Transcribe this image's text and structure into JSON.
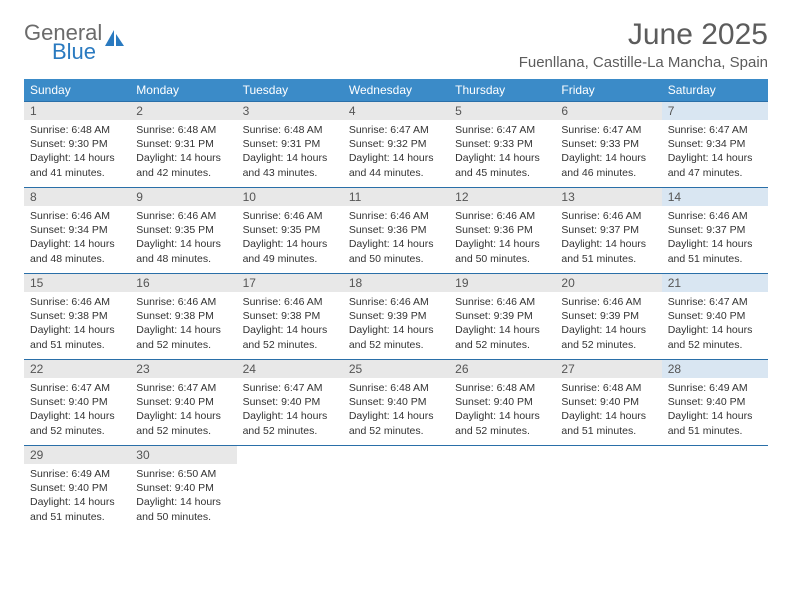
{
  "logo": {
    "text1": "General",
    "text2": "Blue"
  },
  "title": "June 2025",
  "location": "Fuenllana, Castille-La Mancha, Spain",
  "colors": {
    "header_bg": "#3b8bc8",
    "header_text": "#ffffff",
    "daynum_bg": "#e8e8e8",
    "daynum_sat_bg": "#d9e6f2",
    "border": "#2a6fa8",
    "title_color": "#5c5c5c",
    "logo_gray": "#6b6b6b",
    "logo_blue": "#2a7ac0"
  },
  "day_headers": [
    "Sunday",
    "Monday",
    "Tuesday",
    "Wednesday",
    "Thursday",
    "Friday",
    "Saturday"
  ],
  "days": [
    {
      "n": "1",
      "sunrise": "6:48 AM",
      "sunset": "9:30 PM",
      "daylight": "14 hours and 41 minutes."
    },
    {
      "n": "2",
      "sunrise": "6:48 AM",
      "sunset": "9:31 PM",
      "daylight": "14 hours and 42 minutes."
    },
    {
      "n": "3",
      "sunrise": "6:48 AM",
      "sunset": "9:31 PM",
      "daylight": "14 hours and 43 minutes."
    },
    {
      "n": "4",
      "sunrise": "6:47 AM",
      "sunset": "9:32 PM",
      "daylight": "14 hours and 44 minutes."
    },
    {
      "n": "5",
      "sunrise": "6:47 AM",
      "sunset": "9:33 PM",
      "daylight": "14 hours and 45 minutes."
    },
    {
      "n": "6",
      "sunrise": "6:47 AM",
      "sunset": "9:33 PM",
      "daylight": "14 hours and 46 minutes."
    },
    {
      "n": "7",
      "sunrise": "6:47 AM",
      "sunset": "9:34 PM",
      "daylight": "14 hours and 47 minutes."
    },
    {
      "n": "8",
      "sunrise": "6:46 AM",
      "sunset": "9:34 PM",
      "daylight": "14 hours and 48 minutes."
    },
    {
      "n": "9",
      "sunrise": "6:46 AM",
      "sunset": "9:35 PM",
      "daylight": "14 hours and 48 minutes."
    },
    {
      "n": "10",
      "sunrise": "6:46 AM",
      "sunset": "9:35 PM",
      "daylight": "14 hours and 49 minutes."
    },
    {
      "n": "11",
      "sunrise": "6:46 AM",
      "sunset": "9:36 PM",
      "daylight": "14 hours and 50 minutes."
    },
    {
      "n": "12",
      "sunrise": "6:46 AM",
      "sunset": "9:36 PM",
      "daylight": "14 hours and 50 minutes."
    },
    {
      "n": "13",
      "sunrise": "6:46 AM",
      "sunset": "9:37 PM",
      "daylight": "14 hours and 51 minutes."
    },
    {
      "n": "14",
      "sunrise": "6:46 AM",
      "sunset": "9:37 PM",
      "daylight": "14 hours and 51 minutes."
    },
    {
      "n": "15",
      "sunrise": "6:46 AM",
      "sunset": "9:38 PM",
      "daylight": "14 hours and 51 minutes."
    },
    {
      "n": "16",
      "sunrise": "6:46 AM",
      "sunset": "9:38 PM",
      "daylight": "14 hours and 52 minutes."
    },
    {
      "n": "17",
      "sunrise": "6:46 AM",
      "sunset": "9:38 PM",
      "daylight": "14 hours and 52 minutes."
    },
    {
      "n": "18",
      "sunrise": "6:46 AM",
      "sunset": "9:39 PM",
      "daylight": "14 hours and 52 minutes."
    },
    {
      "n": "19",
      "sunrise": "6:46 AM",
      "sunset": "9:39 PM",
      "daylight": "14 hours and 52 minutes."
    },
    {
      "n": "20",
      "sunrise": "6:46 AM",
      "sunset": "9:39 PM",
      "daylight": "14 hours and 52 minutes."
    },
    {
      "n": "21",
      "sunrise": "6:47 AM",
      "sunset": "9:40 PM",
      "daylight": "14 hours and 52 minutes."
    },
    {
      "n": "22",
      "sunrise": "6:47 AM",
      "sunset": "9:40 PM",
      "daylight": "14 hours and 52 minutes."
    },
    {
      "n": "23",
      "sunrise": "6:47 AM",
      "sunset": "9:40 PM",
      "daylight": "14 hours and 52 minutes."
    },
    {
      "n": "24",
      "sunrise": "6:47 AM",
      "sunset": "9:40 PM",
      "daylight": "14 hours and 52 minutes."
    },
    {
      "n": "25",
      "sunrise": "6:48 AM",
      "sunset": "9:40 PM",
      "daylight": "14 hours and 52 minutes."
    },
    {
      "n": "26",
      "sunrise": "6:48 AM",
      "sunset": "9:40 PM",
      "daylight": "14 hours and 52 minutes."
    },
    {
      "n": "27",
      "sunrise": "6:48 AM",
      "sunset": "9:40 PM",
      "daylight": "14 hours and 51 minutes."
    },
    {
      "n": "28",
      "sunrise": "6:49 AM",
      "sunset": "9:40 PM",
      "daylight": "14 hours and 51 minutes."
    },
    {
      "n": "29",
      "sunrise": "6:49 AM",
      "sunset": "9:40 PM",
      "daylight": "14 hours and 51 minutes."
    },
    {
      "n": "30",
      "sunrise": "6:50 AM",
      "sunset": "9:40 PM",
      "daylight": "14 hours and 50 minutes."
    }
  ],
  "labels": {
    "sunrise": "Sunrise: ",
    "sunset": "Sunset: ",
    "daylight": "Daylight: "
  }
}
